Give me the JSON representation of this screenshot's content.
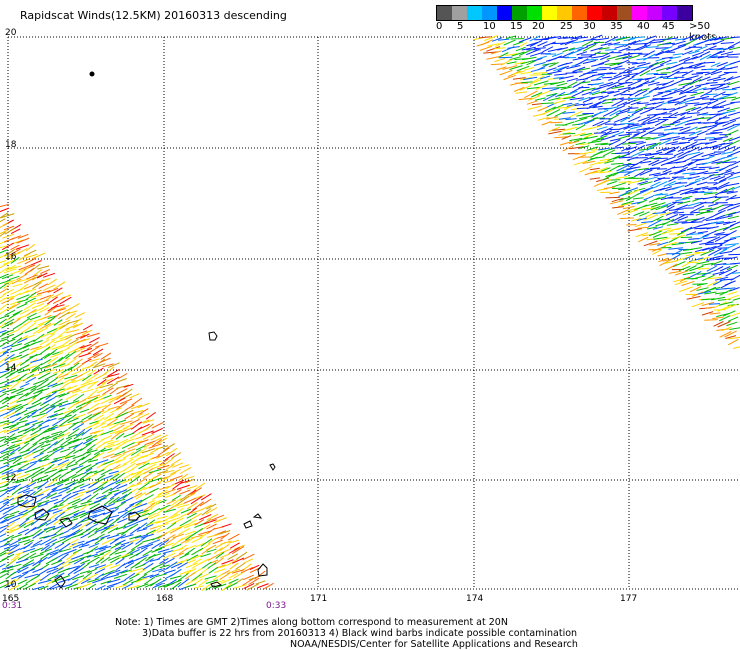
{
  "header": {
    "title": "Rapidscat Winds(12.5KM) 20160313 descending"
  },
  "legend": {
    "colors": [
      "#555555",
      "#a0a0a0",
      "#00c8ff",
      "#0096ff",
      "#0000ff",
      "#00a000",
      "#00e000",
      "#ffff00",
      "#ffc800",
      "#ff6400",
      "#ff0000",
      "#c80000",
      "#a05020",
      "#ff00ff",
      "#c800ff",
      "#7800ff",
      "#3c00a0"
    ],
    "labels": [
      "0",
      "5",
      "10",
      "15",
      "20",
      "25",
      "30",
      "35",
      "40",
      "45",
      ">50 knots"
    ]
  },
  "map": {
    "lat_labels": [
      "20",
      "18",
      "16",
      "14",
      "12",
      "10"
    ],
    "lon_labels": [
      "165",
      "168",
      "171",
      "174",
      "177"
    ],
    "times": [
      "0:31",
      "0:33"
    ]
  },
  "notes": {
    "line1": "Note: 1) Times are GMT 2)Times along bottom correspond to measurement at 20N",
    "line2": "3)Data buffer is 22 hrs from 20160313 4) Black wind barbs indicate possible contamination",
    "line3": "NOAA/NESDIS/Center for Satellite Applications and Research"
  }
}
